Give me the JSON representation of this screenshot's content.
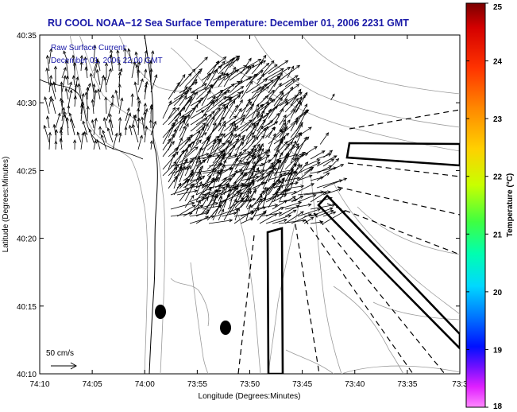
{
  "title": "RU COOL  NOAA−12  Sea Surface Temperature:  December 01, 2006 2231 GMT",
  "overlay": {
    "line1": "Raw Surface Current:",
    "line2": "December 01, 2006 22:00 GMT"
  },
  "axes": {
    "xlabel": "Longitude (Degrees:Minutes)",
    "ylabel": "Latitude (Degrees:Minutes)",
    "x_ticks": [
      "74:10",
      "74:05",
      "74:00",
      "73:55",
      "73:50",
      "73:45",
      "73:40",
      "73:35",
      "73:3"
    ],
    "y_ticks": [
      "40:35",
      "40:30",
      "40:25",
      "40:20",
      "40:15",
      "40:10"
    ]
  },
  "scale_label": "50 cm/s",
  "colorbar": {
    "label": "Temperature (°C)",
    "ticks": [
      "25",
      "24",
      "23",
      "22",
      "21",
      "20",
      "19",
      "18"
    ],
    "min": 18,
    "max": 25
  },
  "colors": {
    "title": "#1a1aa8",
    "overlay_text": "#1a1aa8",
    "contour": "#9a9a9a",
    "arrows": "#000000"
  }
}
